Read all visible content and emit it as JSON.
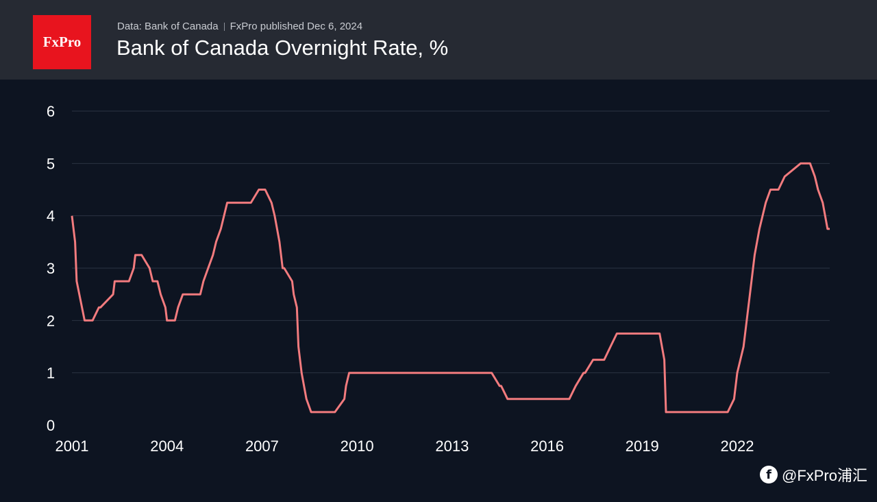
{
  "header": {
    "logo_text": "FxPro",
    "source": "Data: Bank of Canada",
    "published": "FxPro published Dec 6, 2024",
    "title": "Bank of Canada Overnight Rate, %"
  },
  "watermark": {
    "icon": "social-logo-icon",
    "text": "@FxPro浦汇"
  },
  "colors": {
    "background": "#0d1421",
    "header": "#262a33",
    "logo": "#e8141e",
    "line": "#f27b7e",
    "grid": "#2b3342"
  },
  "chart_data": {
    "type": "line",
    "xlim": [
      2001.0,
      2024.92
    ],
    "ylim": [
      0,
      6
    ],
    "yticks": [
      0,
      1,
      2,
      3,
      4,
      5,
      6
    ],
    "xticks": [
      2001,
      2004,
      2007,
      2010,
      2013,
      2016,
      2019,
      2022
    ],
    "grid": true,
    "legend": "none",
    "series": [
      {
        "x": [
          2001.0,
          2001.1,
          2001.15,
          2001.4,
          2001.6,
          2001.65,
          2001.85,
          2001.9,
          2002.3,
          2002.35,
          2002.5,
          2002.6,
          2002.7,
          2002.8,
          2002.95,
          2003.0,
          2003.2,
          2003.45,
          2003.55,
          2003.7,
          2003.8,
          2003.95,
          2004.0,
          2004.15,
          2004.25,
          2004.35,
          2004.5,
          2004.9,
          2005.05,
          2005.15,
          2005.3,
          2005.45,
          2005.55,
          2005.7,
          2005.9,
          2006.35,
          2006.45,
          2006.6,
          2006.65,
          2006.9,
          2006.95,
          2007.1,
          2007.3,
          2007.4,
          2007.55,
          2007.65,
          2007.7,
          2007.95,
          2008.0,
          2008.1,
          2008.15,
          2008.25,
          2008.4,
          2008.55,
          2008.65,
          2008.7,
          2009.25,
          2009.3,
          2009.6,
          2009.65,
          2009.75,
          2009.85,
          2010.0,
          2010.15,
          2010.25,
          2010.35,
          2010.45,
          2010.55,
          2010.6,
          2010.75,
          2014.25,
          2014.5,
          2014.55,
          2014.75,
          2014.9,
          2015.0,
          2015.1,
          2016.7,
          2016.9,
          2017.15,
          2017.2,
          2017.45,
          2017.5,
          2017.8,
          2018.0,
          2018.2,
          2018.25,
          2019.55,
          2019.7,
          2019.75,
          2021.55,
          2021.7,
          2021.9,
          2022.0,
          2022.2,
          2022.4,
          2022.55,
          2022.7,
          2022.9,
          2023.05,
          2023.3,
          2023.5,
          2024.0,
          2024.3,
          2024.45,
          2024.55,
          2024.7,
          2024.85,
          2024.92
        ],
        "y": [
          4.0,
          3.5,
          2.75,
          2.0,
          2.0,
          2.0,
          2.25,
          2.25,
          2.5,
          2.75,
          2.75,
          2.75,
          2.75,
          2.75,
          3.0,
          3.25,
          3.25,
          3.0,
          2.75,
          2.75,
          2.5,
          2.25,
          2.0,
          2.0,
          2.0,
          2.25,
          2.5,
          2.5,
          2.5,
          2.75,
          3.0,
          3.25,
          3.5,
          3.75,
          4.25,
          4.25,
          4.25,
          4.25,
          4.25,
          4.5,
          4.5,
          4.5,
          4.25,
          4.0,
          3.5,
          3.0,
          3.0,
          2.75,
          2.5,
          2.25,
          1.5,
          1.0,
          0.5,
          0.25,
          0.25,
          0.25,
          0.25,
          0.25,
          0.5,
          0.75,
          1.0,
          1.0,
          1.0,
          1.0,
          1.0,
          1.0,
          1.0,
          1.0,
          1.0,
          1.0,
          1.0,
          0.75,
          0.75,
          0.5,
          0.5,
          0.5,
          0.5,
          0.5,
          0.75,
          1.0,
          1.0,
          1.25,
          1.25,
          1.25,
          1.5,
          1.75,
          1.75,
          1.75,
          1.25,
          0.25,
          0.25,
          0.25,
          0.5,
          1.0,
          1.5,
          2.5,
          3.25,
          3.75,
          4.25,
          4.5,
          4.5,
          4.75,
          5.0,
          5.0,
          4.75,
          4.5,
          4.25,
          3.75,
          3.75
        ]
      }
    ]
  }
}
